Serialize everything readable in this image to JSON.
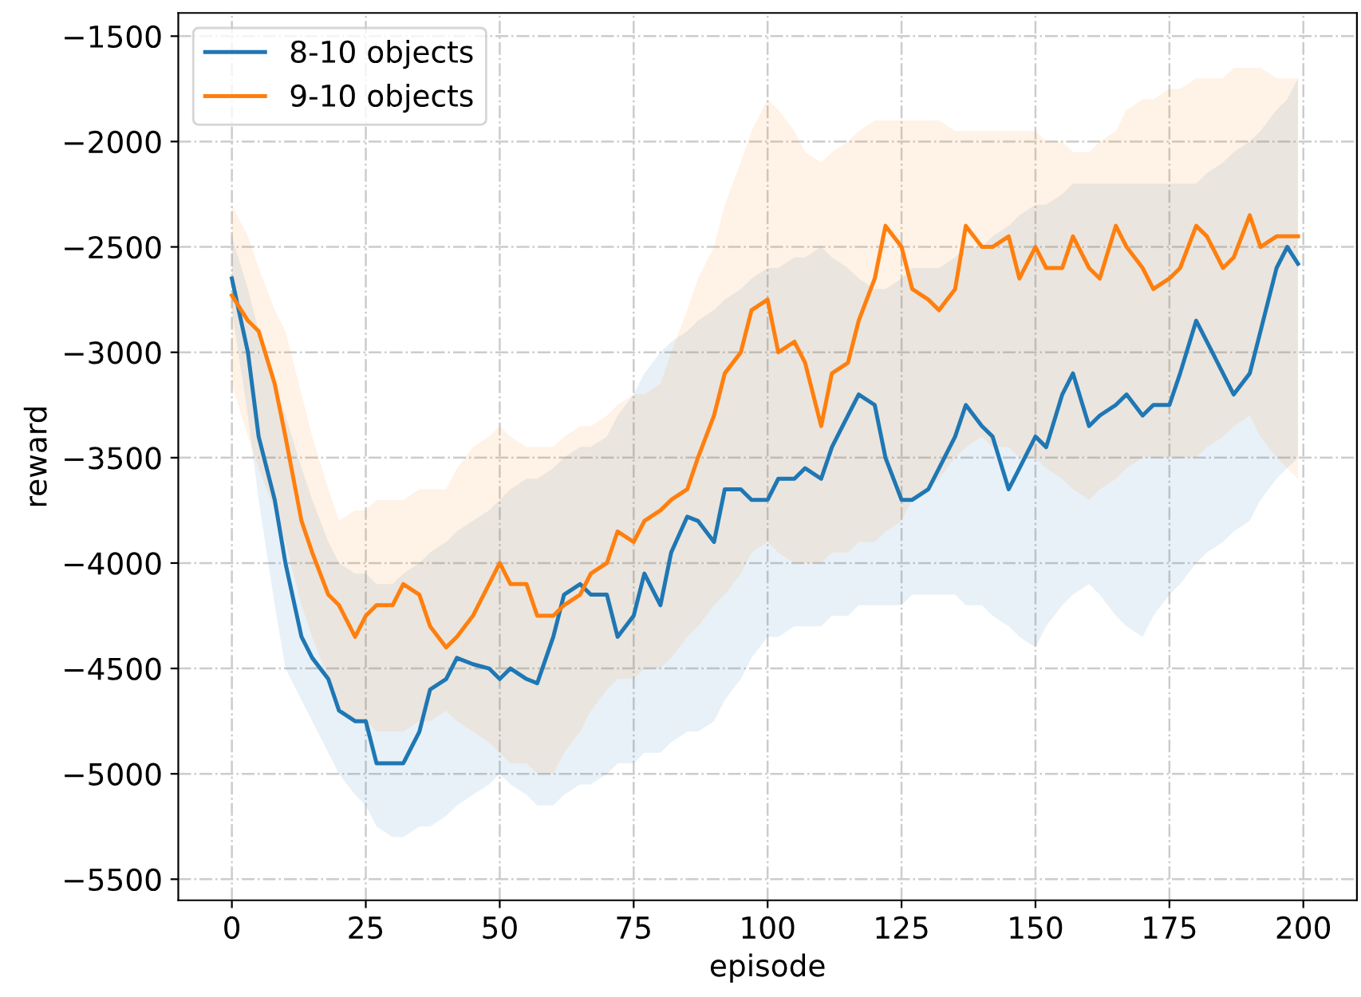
{
  "chart_data": {
    "type": "line",
    "xlabel": "episode",
    "ylabel": "reward",
    "xlim": [
      -10,
      210
    ],
    "ylim": [
      -5600,
      -1390
    ],
    "xticks": [
      0,
      25,
      50,
      75,
      100,
      125,
      150,
      175,
      200
    ],
    "yticks": [
      -5500,
      -5000,
      -4500,
      -4000,
      -3500,
      -3000,
      -2500,
      -2000,
      -1500
    ],
    "grid": true,
    "legend": "top left",
    "line_style": "solid",
    "marker": "none",
    "x": [
      0,
      3,
      5,
      8,
      10,
      13,
      15,
      18,
      20,
      23,
      25,
      27,
      30,
      32,
      35,
      37,
      40,
      42,
      45,
      48,
      50,
      52,
      55,
      57,
      60,
      62,
      65,
      67,
      70,
      72,
      75,
      77,
      80,
      82,
      85,
      87,
      90,
      92,
      95,
      97,
      100,
      102,
      105,
      107,
      110,
      112,
      115,
      117,
      120,
      122,
      125,
      127,
      130,
      132,
      135,
      137,
      140,
      142,
      145,
      147,
      150,
      152,
      155,
      157,
      160,
      162,
      165,
      167,
      170,
      172,
      175,
      177,
      180,
      182,
      185,
      187,
      190,
      192,
      195,
      197,
      199
    ],
    "series": [
      {
        "name": "8-10 objects",
        "color": "#1f77b4",
        "values": [
          -2650,
          -3000,
          -3400,
          -3700,
          -4000,
          -4350,
          -4450,
          -4550,
          -4700,
          -4750,
          -4750,
          -4950,
          -4950,
          -4950,
          -4800,
          -4600,
          -4550,
          -4450,
          -4480,
          -4500,
          -4550,
          -4500,
          -4550,
          -4570,
          -4350,
          -4150,
          -4100,
          -4150,
          -4150,
          -4350,
          -4250,
          -4050,
          -4200,
          -3950,
          -3780,
          -3800,
          -3900,
          -3650,
          -3650,
          -3700,
          -3700,
          -3600,
          -3600,
          -3550,
          -3600,
          -3450,
          -3300,
          -3200,
          -3250,
          -3500,
          -3700,
          -3700,
          -3650,
          -3550,
          -3400,
          -3250,
          -3350,
          -3400,
          -3650,
          -3550,
          -3400,
          -3450,
          -3200,
          -3100,
          -3350,
          -3300,
          -3250,
          -3200,
          -3300,
          -3250,
          -3250,
          -3100,
          -2850,
          -2950,
          -3100,
          -3200,
          -3100,
          -2900,
          -2600,
          -2500,
          -2580
        ],
        "upper": [
          -2450,
          -2700,
          -2900,
          -3150,
          -3300,
          -3550,
          -3700,
          -3900,
          -4000,
          -4050,
          -4050,
          -4100,
          -4100,
          -4050,
          -4000,
          -3950,
          -3900,
          -3850,
          -3800,
          -3750,
          -3700,
          -3650,
          -3600,
          -3600,
          -3550,
          -3500,
          -3450,
          -3450,
          -3400,
          -3300,
          -3200,
          -3100,
          -3000,
          -2950,
          -2900,
          -2850,
          -2800,
          -2750,
          -2700,
          -2650,
          -2600,
          -2600,
          -2550,
          -2550,
          -2500,
          -2550,
          -2600,
          -2650,
          -2700,
          -2700,
          -2650,
          -2600,
          -2600,
          -2600,
          -2550,
          -2500,
          -2500,
          -2450,
          -2400,
          -2350,
          -2300,
          -2300,
          -2250,
          -2200,
          -2200,
          -2200,
          -2200,
          -2200,
          -2200,
          -2200,
          -2200,
          -2200,
          -2200,
          -2150,
          -2100,
          -2050,
          -2000,
          -1950,
          -1850,
          -1800,
          -1700
        ],
        "lower": [
          -2800,
          -3300,
          -3700,
          -4200,
          -4500,
          -4650,
          -4750,
          -4900,
          -5000,
          -5100,
          -5150,
          -5250,
          -5300,
          -5300,
          -5250,
          -5250,
          -5200,
          -5150,
          -5100,
          -5050,
          -5000,
          -5050,
          -5100,
          -5150,
          -5150,
          -5100,
          -5050,
          -5050,
          -5000,
          -4950,
          -4950,
          -4900,
          -4900,
          -4850,
          -4800,
          -4800,
          -4750,
          -4650,
          -4550,
          -4450,
          -4350,
          -4350,
          -4300,
          -4300,
          -4300,
          -4250,
          -4250,
          -4200,
          -4200,
          -4200,
          -4200,
          -4150,
          -4150,
          -4150,
          -4150,
          -4200,
          -4200,
          -4250,
          -4300,
          -4350,
          -4400,
          -4300,
          -4200,
          -4150,
          -4100,
          -4150,
          -4250,
          -4300,
          -4350,
          -4250,
          -4150,
          -4100,
          -4000,
          -3950,
          -3900,
          -3850,
          -3800,
          -3700,
          -3600,
          -3550,
          -3500
        ]
      },
      {
        "name": "9-10 objects",
        "color": "#ff7f0e",
        "values": [
          -2730,
          -2850,
          -2900,
          -3150,
          -3400,
          -3800,
          -3950,
          -4150,
          -4200,
          -4350,
          -4250,
          -4200,
          -4200,
          -4100,
          -4150,
          -4300,
          -4400,
          -4350,
          -4250,
          -4100,
          -4000,
          -4100,
          -4100,
          -4250,
          -4250,
          -4200,
          -4150,
          -4050,
          -4000,
          -3850,
          -3900,
          -3800,
          -3750,
          -3700,
          -3650,
          -3500,
          -3300,
          -3100,
          -3000,
          -2800,
          -2750,
          -3000,
          -2950,
          -3050,
          -3350,
          -3100,
          -3050,
          -2850,
          -2650,
          -2400,
          -2500,
          -2700,
          -2750,
          -2800,
          -2700,
          -2400,
          -2500,
          -2500,
          -2450,
          -2650,
          -2500,
          -2600,
          -2600,
          -2450,
          -2600,
          -2650,
          -2400,
          -2500,
          -2600,
          -2700,
          -2650,
          -2600,
          -2400,
          -2450,
          -2600,
          -2550,
          -2350,
          -2500,
          -2450,
          -2450,
          -2450
        ],
        "upper": [
          -2300,
          -2450,
          -2600,
          -2800,
          -2900,
          -3200,
          -3400,
          -3650,
          -3800,
          -3750,
          -3750,
          -3700,
          -3700,
          -3700,
          -3650,
          -3650,
          -3650,
          -3550,
          -3450,
          -3400,
          -3350,
          -3400,
          -3450,
          -3450,
          -3450,
          -3400,
          -3350,
          -3350,
          -3300,
          -3250,
          -3200,
          -3200,
          -3150,
          -3000,
          -2800,
          -2650,
          -2500,
          -2300,
          -2100,
          -1950,
          -1800,
          -1850,
          -1950,
          -2050,
          -2100,
          -2050,
          -2000,
          -1950,
          -1900,
          -1900,
          -1900,
          -1900,
          -1900,
          -1900,
          -1950,
          -1950,
          -1950,
          -1950,
          -1950,
          -1950,
          -1950,
          -2000,
          -2000,
          -2050,
          -2050,
          -2000,
          -1950,
          -1850,
          -1800,
          -1800,
          -1750,
          -1750,
          -1700,
          -1700,
          -1700,
          -1650,
          -1650,
          -1650,
          -1700,
          -1700,
          -1700
        ],
        "lower": [
          -3150,
          -3400,
          -3550,
          -3750,
          -3900,
          -4200,
          -4350,
          -4550,
          -4700,
          -4750,
          -4750,
          -4800,
          -4800,
          -4800,
          -4750,
          -4750,
          -4700,
          -4750,
          -4800,
          -4850,
          -4900,
          -4950,
          -4950,
          -5000,
          -5000,
          -4900,
          -4800,
          -4700,
          -4600,
          -4550,
          -4550,
          -4500,
          -4500,
          -4450,
          -4350,
          -4300,
          -4200,
          -4150,
          -4050,
          -3950,
          -3900,
          -3950,
          -4000,
          -4000,
          -4000,
          -3950,
          -3950,
          -3900,
          -3900,
          -3850,
          -3800,
          -3700,
          -3650,
          -3600,
          -3500,
          -3450,
          -3400,
          -3450,
          -3450,
          -3500,
          -3500,
          -3550,
          -3600,
          -3650,
          -3700,
          -3650,
          -3600,
          -3550,
          -3500,
          -3500,
          -3500,
          -3500,
          -3500,
          -3450,
          -3400,
          -3350,
          -3300,
          -3400,
          -3500,
          -3550,
          -3600
        ]
      }
    ]
  }
}
